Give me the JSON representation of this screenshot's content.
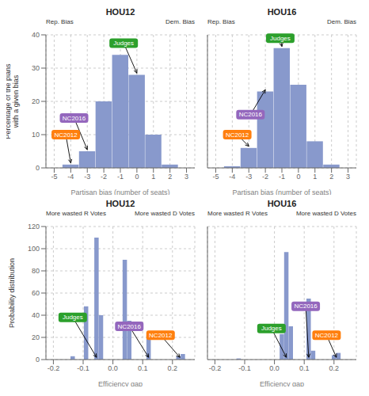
{
  "chart_data": [
    {
      "type": "bar",
      "title": "HOU12",
      "side_labels": [
        "Rep. Bias",
        "Dem. Bias"
      ],
      "x_label": "Partisan bias (number of seats)",
      "y_label": "Percentage of the plans\nwith a given bias",
      "x": [
        -4,
        -3,
        -2,
        -1,
        0,
        1,
        2
      ],
      "values": [
        1,
        5,
        20,
        34,
        28,
        10,
        1
      ],
      "xlim": [
        -5.5,
        3.5
      ],
      "xticks": [
        -5,
        -4,
        -3,
        -2,
        -1,
        0,
        1,
        2,
        3
      ],
      "ylim": [
        0,
        40
      ],
      "yticks": [
        0,
        10,
        20,
        30,
        40
      ],
      "color": "#8899cc",
      "grid": true,
      "annotations": [
        {
          "text": "Judges",
          "x": 0.0,
          "y": 28.5,
          "text_x": -0.8,
          "text_y": 37.5,
          "color": "#2ca02c",
          "text_color": "white"
        },
        {
          "text": "NC2016",
          "x": -3.0,
          "y": 5.5,
          "text_x": -3.8,
          "text_y": 15,
          "color": "#9467bd",
          "text_color": "white"
        },
        {
          "text": "NC2012",
          "x": -4.0,
          "y": 1.5,
          "text_x": -4.3,
          "text_y": 10,
          "color": "#ff7f0e",
          "text_color": "white"
        }
      ]
    },
    {
      "type": "bar",
      "title": "HOU16",
      "side_labels": [
        "Rep. Bias",
        "Dem. Bias"
      ],
      "x_label": "Partisan bias (number of seats)",
      "tick_labels": "x",
      "x": [
        -4,
        -3,
        -2,
        -1,
        0,
        1,
        2
      ],
      "values": [
        0.5,
        6,
        23,
        36,
        25,
        8,
        1
      ],
      "xlim": [
        -5.5,
        3.5
      ],
      "xticks": [
        -5,
        -4,
        -3,
        -2,
        -1,
        0,
        1,
        2,
        3
      ],
      "ylim": [
        0,
        40
      ],
      "yticks": [
        0,
        10,
        20,
        30,
        40
      ],
      "color": "#8899cc",
      "grid": true,
      "annotations": [
        {
          "text": "Judges",
          "x": -1.0,
          "y": 36.5,
          "text_x": -1.1,
          "text_y": 39,
          "color": "#2ca02c",
          "text_color": "white"
        },
        {
          "text": "NC2016",
          "x": -2.0,
          "y": 23.5,
          "text_x": -2.9,
          "text_y": 16,
          "color": "#9467bd",
          "text_color": "white"
        },
        {
          "text": "NC2012",
          "x": -3.0,
          "y": 6.5,
          "text_x": -3.7,
          "text_y": 10,
          "color": "#ff7f0e",
          "text_color": "white"
        }
      ]
    },
    {
      "type": "bar",
      "title": "HOU12",
      "side_labels": [
        "More wasted R Votes",
        "More wasted D Votes"
      ],
      "x_label": "Efficiency gap",
      "y_label": "Probability distribution",
      "x": [
        -0.135,
        -0.09,
        -0.055,
        -0.04,
        0.04,
        0.055,
        0.12,
        0.22,
        0.235
      ],
      "values": [
        3,
        48,
        110,
        40,
        90,
        35,
        22,
        3,
        5
      ],
      "xlim": [
        -0.225,
        0.275
      ],
      "xticks": [
        -0.2,
        -0.1,
        {
          "value": 0,
          "label": "0.0"
        },
        0.1,
        0.2
      ],
      "ylim": [
        0,
        120
      ],
      "yticks": [
        0,
        20,
        40,
        60,
        80,
        100,
        120
      ],
      "color": "#8899cc",
      "grid": true,
      "annotations": [
        {
          "text": "Judges",
          "x": -0.055,
          "y": 2,
          "text_x": -0.135,
          "text_y": 38,
          "color": "#2ca02c",
          "text_color": "white"
        },
        {
          "text": "NC2016",
          "x": 0.12,
          "y": 2,
          "text_x": 0.055,
          "text_y": 30,
          "color": "#9467bd",
          "text_color": "white"
        },
        {
          "text": "NC2012",
          "x": 0.225,
          "y": 2,
          "text_x": 0.16,
          "text_y": 22,
          "color": "#ff7f0e",
          "text_color": "white"
        }
      ]
    },
    {
      "type": "bar",
      "title": "HOU16",
      "side_labels": [
        "More wasted R Votes",
        "More wasted D Votes"
      ],
      "x_label": "Efficiency gap",
      "tick_labels": "x",
      "x": [
        -0.12,
        0.025,
        0.04,
        0.055,
        0.115,
        0.13,
        0.2,
        0.215
      ],
      "values": [
        1,
        23,
        97,
        30,
        55,
        8,
        4,
        6
      ],
      "xlim": [
        -0.225,
        0.275
      ],
      "xticks": [
        -0.2,
        -0.1,
        {
          "value": 0,
          "label": "0.0"
        },
        0.1,
        0.2
      ],
      "ylim": [
        0,
        120
      ],
      "yticks": [
        0,
        20,
        40,
        60,
        80,
        100,
        120
      ],
      "color": "#8899cc",
      "grid": true,
      "annotations": [
        {
          "text": "Judges",
          "x": 0.04,
          "y": 2,
          "text_x": -0.01,
          "text_y": 28,
          "color": "#2ca02c",
          "text_color": "white"
        },
        {
          "text": "NC2016",
          "x": 0.115,
          "y": 2,
          "text_x": 0.105,
          "text_y": 48,
          "color": "#9467bd",
          "text_color": "white"
        },
        {
          "text": "NC2012",
          "x": 0.208,
          "y": 2,
          "text_x": 0.175,
          "text_y": 22,
          "color": "#ff7f0e",
          "text_color": "white"
        }
      ]
    }
  ]
}
